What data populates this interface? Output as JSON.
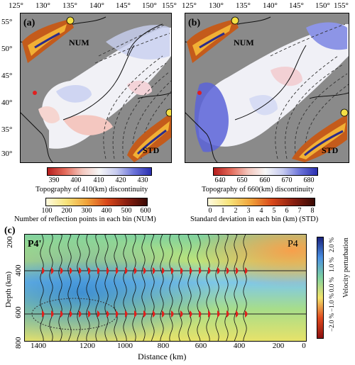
{
  "panel_a": {
    "label": "(a)",
    "num_label": "NUM",
    "std_label": "STD",
    "lon_ticks": [
      "125°",
      "130°",
      "135°",
      "140°",
      "145°",
      "150°",
      "155°"
    ],
    "lat_ticks": [
      "55°",
      "50°",
      "45°",
      "40°",
      "35°",
      "30°"
    ]
  },
  "panel_b": {
    "label": "(b)",
    "num_label": "NUM",
    "std_label": "STD",
    "lon_ticks": [
      "125°",
      "130°",
      "135°",
      "140°",
      "145°",
      "150°",
      "155°"
    ]
  },
  "colorbars": {
    "d410": {
      "title": "Topography of 410(km) discontinuity",
      "ticks": [
        "390",
        "400",
        "410",
        "420",
        "430"
      ]
    },
    "d660": {
      "title": "Topography of 660(km) discontinuity",
      "ticks": [
        "640",
        "650",
        "660",
        "670",
        "680"
      ]
    },
    "num": {
      "title": "Number of reflection points in each bin (NUM)",
      "ticks": [
        "100",
        "200",
        "300",
        "400",
        "500",
        "600"
      ]
    },
    "std": {
      "title": "Standard deviation in each bin (km) (STD)",
      "ticks": [
        "0",
        "1",
        "2",
        "3",
        "4",
        "5",
        "6",
        "7",
        "8"
      ]
    },
    "velocity": {
      "title": "Velocity perturbation",
      "ticks": [
        "−2.0 %",
        "−1.0 %",
        "0.0 %",
        "1.0 %",
        "2.0 %"
      ]
    }
  },
  "panel_c": {
    "label": "(c)",
    "left_tag": "P4'",
    "right_tag": "P4",
    "ylabel": "Depth (km)",
    "xlabel": "Distance (km)",
    "yticks": [
      "200",
      "400",
      "600",
      "800"
    ],
    "xticks": [
      "1400",
      "1200",
      "1000",
      "800",
      "600",
      "400",
      "200",
      "0"
    ]
  }
}
